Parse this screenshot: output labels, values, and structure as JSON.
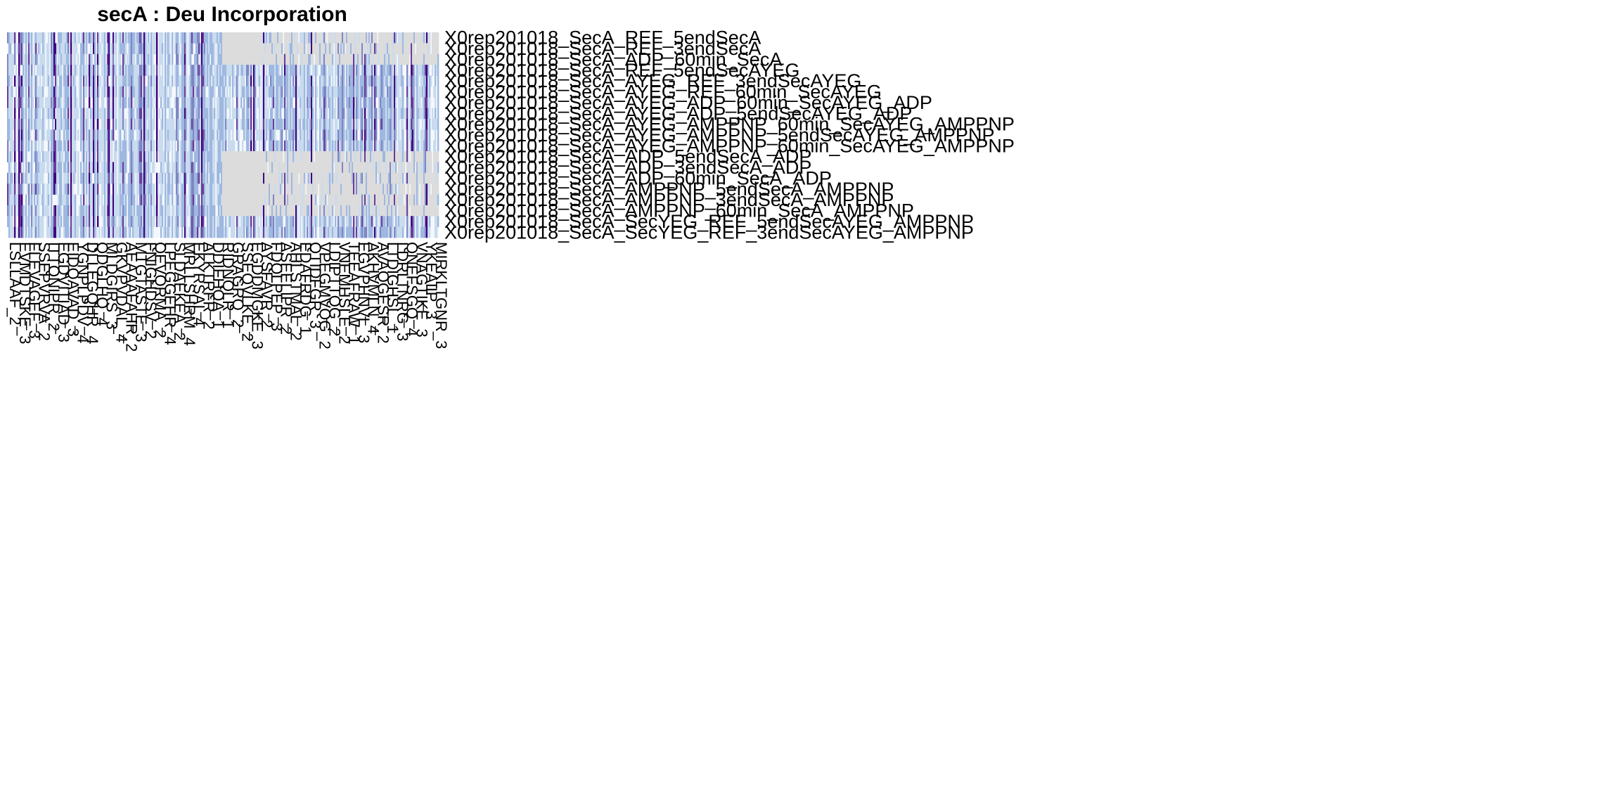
{
  "chart_data": {
    "type": "heatmap",
    "title": "secA : Deu Incorporation",
    "colors": {
      "missing": "#dcdcdc",
      "low": "#f4f8fc",
      "mid_low": "#c9dbee",
      "mid": "#9fb8e0",
      "mid_high": "#7f86c4",
      "high": "#6a3d9a",
      "max": "#3f007d"
    },
    "rows": [
      "X0rep201018_SecA_REF_5endSecA",
      "X0rep201018_SecA_REF_3endSecA",
      "X0rep201018_SecA_ADP_60min_SecA",
      "X0rep201018_SecA_REF_5endSecAYEG",
      "X0rep201018_SecA_AYEG_REF_3endSecAYEG",
      "X0rep201018_SecA_AYEG_REF_60min_SecAYEG",
      "X0rep201018_SecA_AYEG_ADP_60min_SecAYEG_ADP",
      "X0rep201018_SecA_AYEG_ADP_5endSecAYEG_ADP",
      "X0rep201018_SecA_AYEG_AMPPNP_60min_SecAYEG_AMPPNP",
      "X0rep201018_SecA_AYEG_AMPPNP_5endSecAYEG_AMPPNP",
      "X0rep201018_SecA_AYEG_AMPPNP_60min_SecAYEG_AMPPNP",
      "X0rep201018_SecA_ADP_5endSecA_ADP",
      "X0rep201018_SecA_ADP_3endSecA_ADP",
      "X0rep201018_SecA_ADP_60min_SecA_ADP",
      "X0rep201018_SecA_AMPPNP_5endSecA_AMPPNP",
      "X0rep201018_SecA_AMPPNP_3endSecA_AMPPNP",
      "X0rep201018_SecA_AMPPNP_60min_SecA_AMPPNP",
      "X0rep201018_SecA_SecYEG_REF_5endSecAYEG_AMPPNP",
      "X0rep201018_SecA_SecYEG_REF_3endSecAYEG_AMPPNP"
    ],
    "columns": [
      "LSLLAAF_2",
      "EVMDTSKE_3",
      "FLEVAGEF_3",
      "SSEPVRVA_2",
      "ITTQNIPR_2",
      "EGDVITIAD_3",
      "EIDQAVAD_3",
      "YGNPLPDV_4",
      "DLLEGQHR_4",
      "QDGLHQ_4",
      "MLDGIRS_3",
      "GKVPVDAL_4",
      "AEAAAFAHR_2",
      "MTGTASTE_3",
      "FNIGHDSV_2",
      "QEVQRMA_2",
      "LPEGGEHR_4",
      "SLDAEKEA_2",
      "MRLLSHRM_4",
      "EKYRSAI_4",
      "ALKTRFR_2",
      "DDIFHQA_1",
      "RIDNQLR_1",
      "GRAGRQ_2",
      "SSEQVLKE_2",
      "EGDDMGKE_3",
      "AYSFAVR_2",
      "FDQLPEP_3",
      "ASEELIPR_2",
      "AHLSTMAL_2",
      "EDAFRDG_1",
      "QTIDFGR_3",
      "VPEGMVQG_2",
      "LDIPTTQG_2",
      "VNEMHSLE_2",
      "TEEAFRAW_1",
      "EGVPHNVL_3",
      "AKHVMLN_4",
      "AVAQGESR_2",
      "LTDIGHSL_1",
      "LDRLTNRG_3",
      "QNEFSGQ_4",
      "VNAGTIKE_3",
      "YKEAIIP_3",
      "MIRKLTGNR_3"
    ]
  }
}
